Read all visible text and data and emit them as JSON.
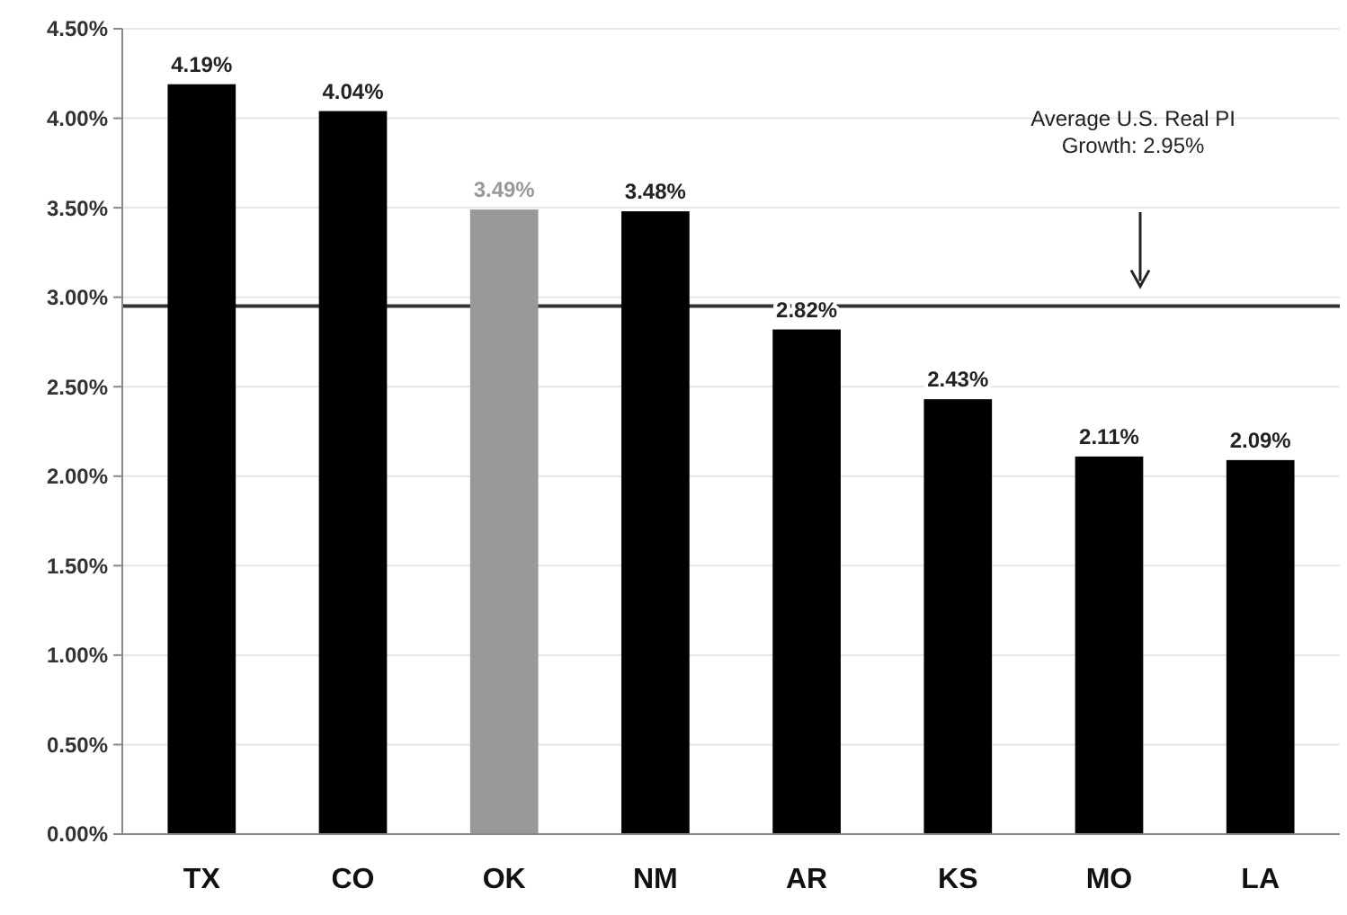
{
  "chart_data": {
    "type": "bar",
    "categories": [
      "TX",
      "CO",
      "OK",
      "NM",
      "AR",
      "KS",
      "MO",
      "LA"
    ],
    "values": [
      4.19,
      4.04,
      3.49,
      3.48,
      2.82,
      2.43,
      2.11,
      2.09
    ],
    "colors": [
      "#000000",
      "#000000",
      "#999999",
      "#000000",
      "#000000",
      "#000000",
      "#000000",
      "#000000"
    ],
    "value_labels": [
      "4.19%",
      "4.04%",
      "3.49%",
      "3.48%",
      "2.82%",
      "2.43%",
      "2.11%",
      "2.09%"
    ],
    "ylim": [
      0,
      4.5
    ],
    "yticks": [
      {
        "value": 0,
        "label": "0.00%"
      },
      {
        "value": 0.5,
        "label": "0.50%"
      },
      {
        "value": 1,
        "label": "1.00%"
      },
      {
        "value": 1.5,
        "label": "1.50%"
      },
      {
        "value": 2,
        "label": "2.00%"
      },
      {
        "value": 2.5,
        "label": "2.50%"
      },
      {
        "value": 3,
        "label": "3.00%"
      },
      {
        "value": 3.5,
        "label": "3.50%"
      },
      {
        "value": 4,
        "label": "4.00%"
      },
      {
        "value": 4.5,
        "label": "4.50%"
      }
    ],
    "grid": "y",
    "ref_lines": [
      {
        "axis": "y",
        "value": 2.95,
        "label": "Average U.S. Real PI Growth: 2.95%",
        "color": "#333333"
      }
    ]
  }
}
